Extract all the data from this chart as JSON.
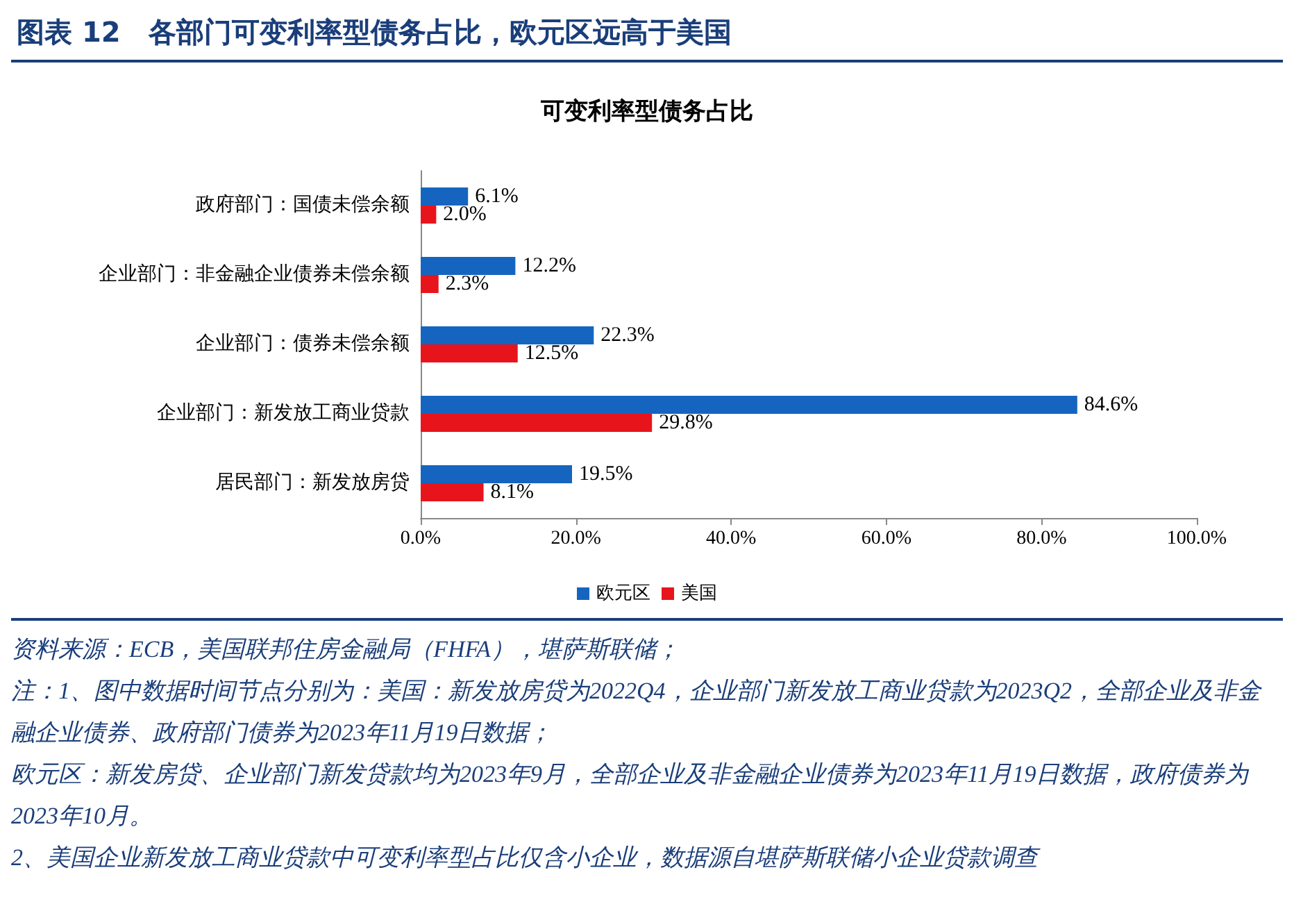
{
  "chart_data": {
    "type": "bar",
    "orientation": "horizontal",
    "title": "图表 12　各部门可变利率型债务占比，欧元区远高于美国",
    "subtitle": "可变利率型债务占比",
    "categories": [
      "政府部门：国债未偿余额",
      "企业部门：非金融企业债券未偿余额",
      "企业部门：债券未偿余额",
      "企业部门：新发放工商业贷款",
      "居民部门：新发放房贷"
    ],
    "series": [
      {
        "name": "欧元区",
        "color": "#1565c0",
        "values": [
          6.1,
          12.2,
          22.3,
          84.6,
          19.5
        ],
        "value_labels": [
          "6.1%",
          "12.2%",
          "22.3%",
          "84.6%",
          "19.5%"
        ]
      },
      {
        "name": "美国",
        "color": "#e8141c",
        "values": [
          2.0,
          2.3,
          12.5,
          29.8,
          8.1
        ],
        "value_labels": [
          "2.0%",
          "2.3%",
          "12.5%",
          "29.8%",
          "8.1%"
        ]
      }
    ],
    "xlim": [
      0,
      100
    ],
    "xticks": [
      {
        "value": 0,
        "label": "0.0%"
      },
      {
        "value": 20,
        "label": "20.0%"
      },
      {
        "value": 40,
        "label": "40.0%"
      },
      {
        "value": 60,
        "label": "60.0%"
      },
      {
        "value": 80,
        "label": "80.0%"
      },
      {
        "value": 100,
        "label": "100.0%"
      }
    ],
    "legend": "bottom",
    "annotations": [
      "资料来源：ECB，美国联邦住房金融局（FHFA），堪萨斯联储；",
      "注：1、图中数据时间节点分别为：美国：新发放房贷为2022Q4，企业部门新发放工商业贷款为2023Q2，全部企业及非金融企业债券、政府部门债券为2023年11月19日数据；",
      "欧元区：新发房贷、企业部门新发贷款均为2023年9月，全部企业及非金融企业债券为2023年11月19日数据，政府债券为2023年10月。",
      "2、美国企业新发放工商业贷款中可变利率型占比仅含小企业，数据源自堪萨斯联储小企业贷款调查"
    ]
  }
}
